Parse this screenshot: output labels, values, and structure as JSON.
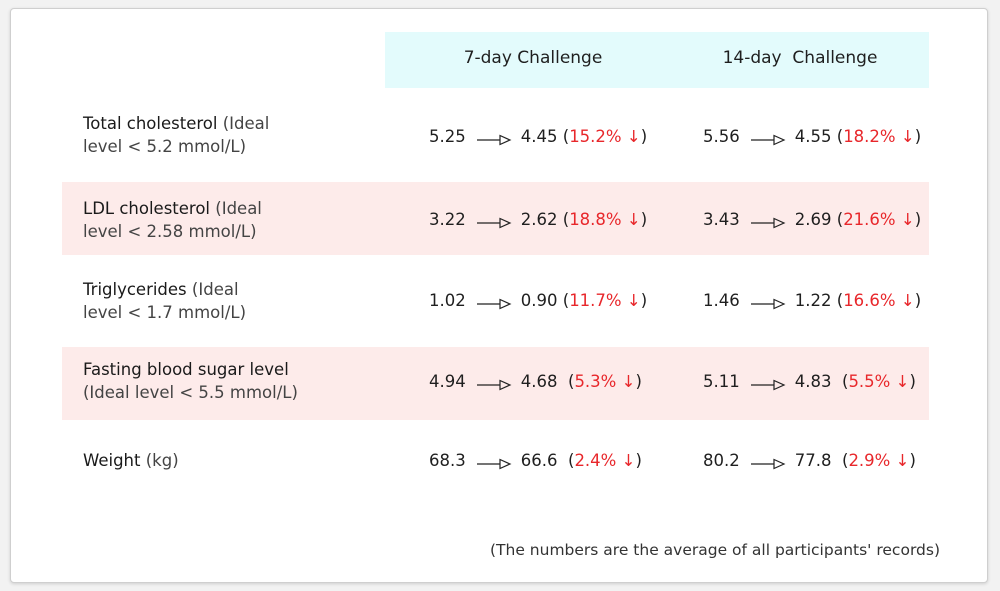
{
  "columns": [
    "7-day Challenge",
    "14-day  Challenge"
  ],
  "rows": [
    {
      "name": "Total cholesterol",
      "ideal_a": " (Ideal",
      "ideal_b": "level < 5.2 mmol/L)",
      "shaded": false,
      "c7": {
        "before": "5.25",
        "after": "4.45",
        "pct_open": " (",
        "pct": "15.2% ↓",
        "pct_close": ")"
      },
      "c14": {
        "before": "5.56",
        "after": "4.55",
        "pct_open": " (",
        "pct": "18.2% ↓",
        "pct_close": ")"
      }
    },
    {
      "name": "LDL cholesterol",
      "ideal_a": " (Ideal",
      "ideal_b": "level < 2.58 mmol/L)",
      "shaded": true,
      "c7": {
        "before": "3.22",
        "after": "2.62",
        "pct_open": " (",
        "pct": "18.8% ↓",
        "pct_close": ")"
      },
      "c14": {
        "before": "3.43",
        "after": "2.69",
        "pct_open": " (",
        "pct": "21.6% ↓",
        "pct_close": ")"
      }
    },
    {
      "name": "Triglycerides",
      "ideal_a": " (Ideal",
      "ideal_b": "level < 1.7 mmol/L)",
      "shaded": false,
      "c7": {
        "before": "1.02",
        "after": "0.90",
        "pct_open": " (",
        "pct": "11.7% ↓",
        "pct_close": ")"
      },
      "c14": {
        "before": "1.46",
        "after": "1.22",
        "pct_open": " (",
        "pct": "16.6% ↓",
        "pct_close": ")"
      }
    },
    {
      "name": "Fasting blood sugar level",
      "ideal_a": "",
      "ideal_b": "(Ideal level < 5.5 mmol/L)",
      "shaded": true,
      "c7": {
        "before": "4.94",
        "after": "4.68",
        "pct_open": "  (",
        "pct": "5.3% ↓",
        "pct_close": ")"
      },
      "c14": {
        "before": "5.11",
        "after": "4.83",
        "pct_open": "  (",
        "pct": "5.5% ↓",
        "pct_close": ")"
      }
    },
    {
      "name": "Weight",
      "ideal_a": " (kg)",
      "ideal_b": "",
      "shaded": false,
      "c7": {
        "before": "68.3",
        "after": "66.6",
        "pct_open": "  (",
        "pct": "2.4% ↓",
        "pct_close": ")"
      },
      "c14": {
        "before": "80.2",
        "after": "77.8",
        "pct_open": "  (",
        "pct": "2.9% ↓",
        "pct_close": ")"
      }
    }
  ],
  "footnote": "(The numbers are the average of all participants' records)",
  "colors": {
    "header_band": "#e3fbfc",
    "shaded_row": "#fdebea",
    "percent_red": "#e8272b"
  },
  "icons": {
    "change_arrow": "right-arrow-outline-icon"
  }
}
